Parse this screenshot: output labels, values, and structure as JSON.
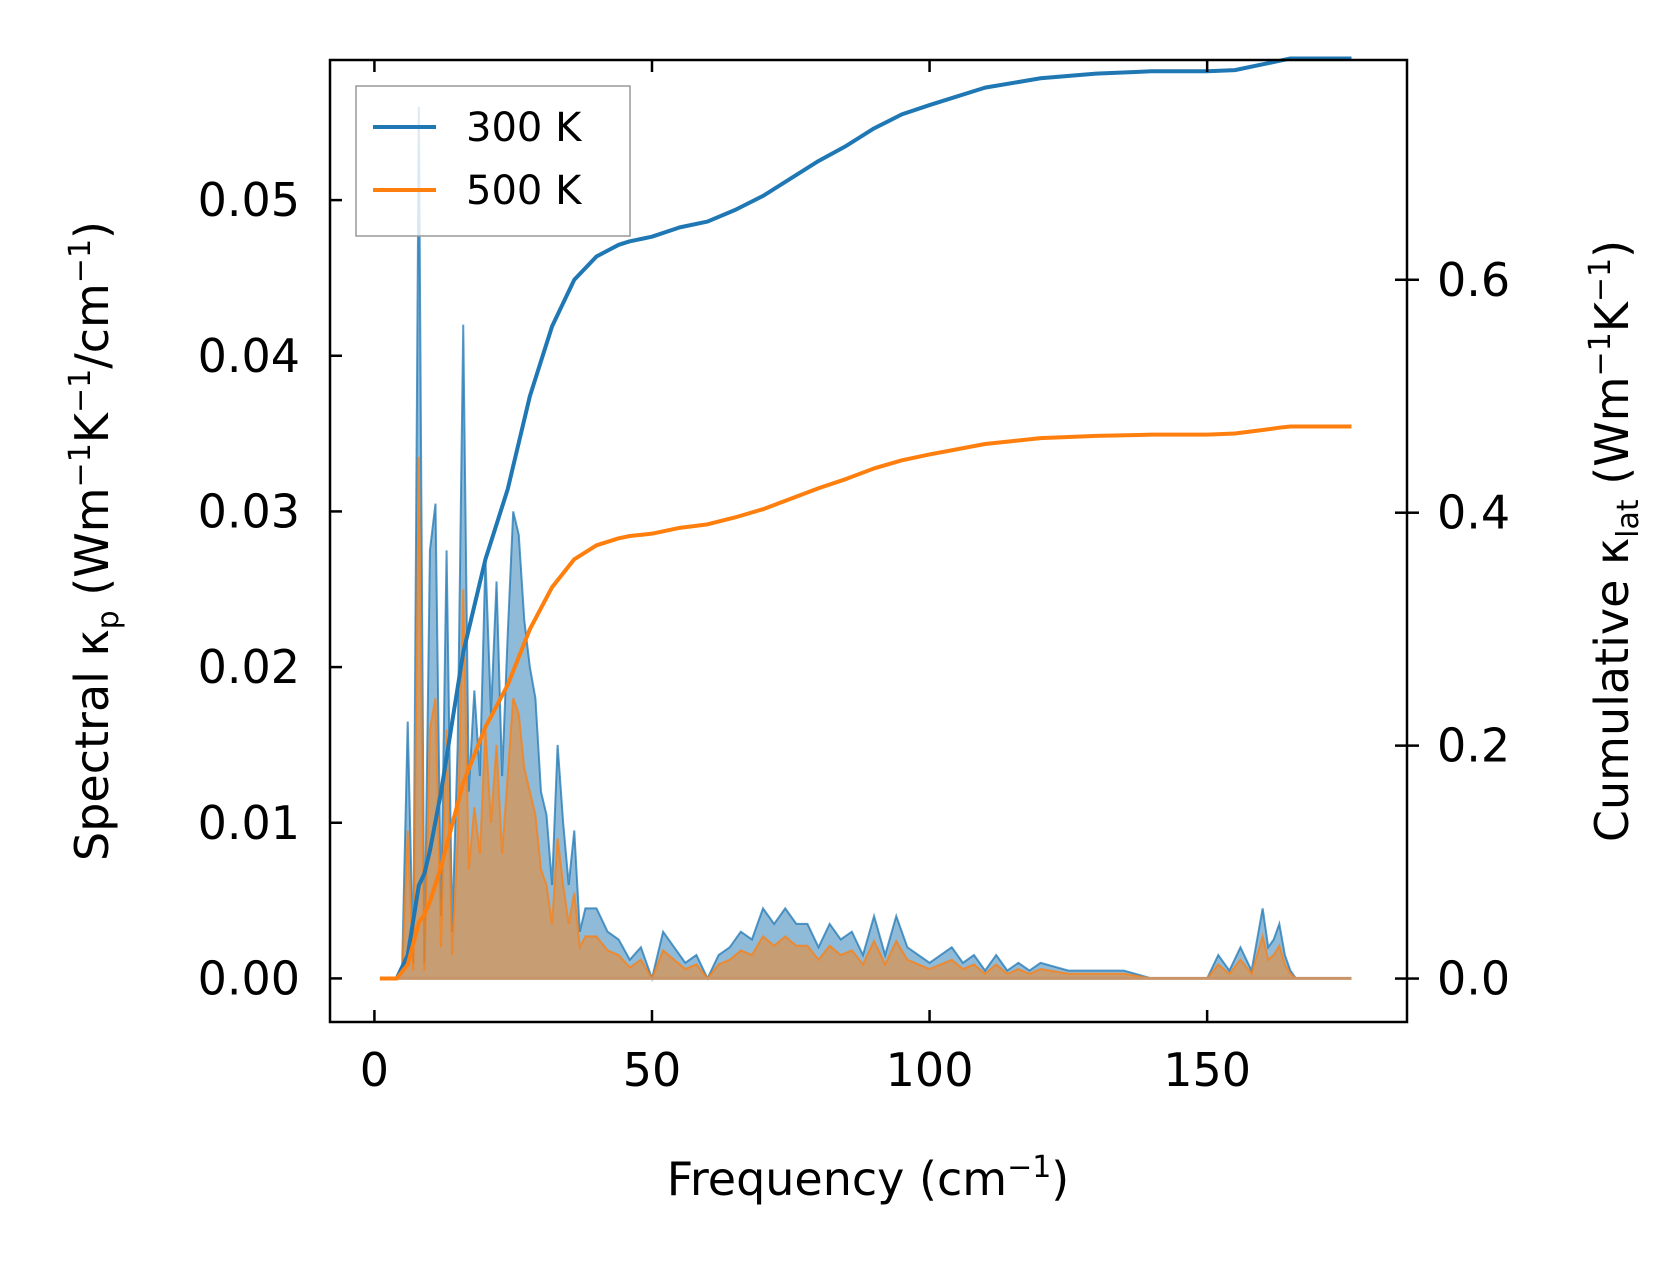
{
  "chart_data": {
    "type": "line",
    "title": "",
    "xlabel": "Frequency (cm⁻¹)",
    "ylabel_left": "Spectral κp (Wm⁻¹K⁻¹/cm⁻¹)",
    "ylabel_right": "Cumulative κlat (Wm⁻¹K⁻¹)",
    "x_ticks": [
      "0",
      "50",
      "100",
      "150"
    ],
    "y_left_ticks": [
      "0.00",
      "0.01",
      "0.02",
      "0.03",
      "0.04",
      "0.05"
    ],
    "y_right_ticks": [
      "0.0",
      "0.2",
      "0.4",
      "0.6"
    ],
    "xlim": [
      -8,
      186
    ],
    "ylim_left": [
      -0.0028,
      0.059
    ],
    "ylim_right": [
      -0.0373,
      0.7887
    ],
    "legend": {
      "placement": "top-left",
      "entries": [
        "300 K",
        "500 K"
      ]
    },
    "grid": false,
    "series": [
      {
        "name": "300 K",
        "color": "#1f77b4",
        "kind": "spectral-fill",
        "axis": "left",
        "x": [
          1,
          3,
          4,
          5,
          6,
          7,
          8,
          9,
          10,
          11,
          12,
          13,
          14,
          15,
          16,
          17,
          18,
          19,
          20,
          21,
          22,
          23,
          24,
          25,
          26,
          27,
          28,
          29,
          30,
          31,
          32,
          33,
          34,
          35,
          36,
          37,
          38,
          40,
          42,
          44,
          46,
          48,
          50,
          52,
          54,
          56,
          58,
          60,
          62,
          64,
          66,
          68,
          70,
          72,
          74,
          76,
          78,
          80,
          82,
          84,
          86,
          88,
          90,
          92,
          94,
          96,
          98,
          100,
          102,
          104,
          106,
          108,
          110,
          112,
          114,
          116,
          118,
          120,
          125,
          130,
          135,
          140,
          145,
          150,
          152,
          154,
          156,
          158,
          160,
          161,
          162,
          163,
          164,
          165,
          166,
          170,
          176
        ],
        "y": [
          0,
          0,
          0,
          0.0008,
          0.0165,
          0.001,
          0.056,
          0.001,
          0.0275,
          0.0305,
          0.004,
          0.0275,
          0.003,
          0.015,
          0.042,
          0.012,
          0.0185,
          0.013,
          0.027,
          0.017,
          0.0255,
          0.013,
          0.022,
          0.03,
          0.0285,
          0.023,
          0.02,
          0.018,
          0.012,
          0.0105,
          0.006,
          0.015,
          0.01,
          0.006,
          0.0095,
          0.003,
          0.0045,
          0.0045,
          0.003,
          0.0025,
          0.0012,
          0.002,
          0,
          0.003,
          0.002,
          0.001,
          0.0015,
          0.0,
          0.0015,
          0.002,
          0.003,
          0.0025,
          0.0045,
          0.0035,
          0.0045,
          0.0035,
          0.0035,
          0.002,
          0.0035,
          0.0025,
          0.003,
          0.0015,
          0.004,
          0.0015,
          0.004,
          0.002,
          0.0015,
          0.001,
          0.0015,
          0.002,
          0.001,
          0.0015,
          0.0005,
          0.0015,
          0.0005,
          0.001,
          0.0005,
          0.001,
          0.0005,
          0.0005,
          0.0005,
          0,
          0,
          0,
          0.0015,
          0.0005,
          0.002,
          0.0005,
          0.0045,
          0.002,
          0.0025,
          0.0035,
          0.0015,
          0.0005,
          0,
          0,
          0
        ]
      },
      {
        "name": "500 K",
        "color": "#ff7f0e",
        "kind": "spectral-fill",
        "axis": "left",
        "x": [
          1,
          3,
          4,
          5,
          6,
          7,
          8,
          9,
          10,
          11,
          12,
          13,
          14,
          15,
          16,
          17,
          18,
          19,
          20,
          21,
          22,
          23,
          24,
          25,
          26,
          27,
          28,
          29,
          30,
          31,
          32,
          33,
          34,
          35,
          36,
          37,
          38,
          40,
          42,
          44,
          46,
          48,
          50,
          52,
          54,
          56,
          58,
          60,
          62,
          64,
          66,
          68,
          70,
          72,
          74,
          76,
          78,
          80,
          82,
          84,
          86,
          88,
          90,
          92,
          94,
          96,
          98,
          100,
          102,
          104,
          106,
          108,
          110,
          112,
          114,
          116,
          118,
          120,
          125,
          130,
          135,
          140,
          145,
          150,
          152,
          154,
          156,
          158,
          160,
          161,
          162,
          163,
          164,
          165,
          166,
          170,
          176
        ],
        "y": [
          0,
          0,
          0,
          0.0005,
          0.0095,
          0.0005,
          0.0335,
          0.0005,
          0.016,
          0.018,
          0.002,
          0.016,
          0.0015,
          0.009,
          0.025,
          0.007,
          0.011,
          0.008,
          0.016,
          0.01,
          0.015,
          0.008,
          0.013,
          0.018,
          0.017,
          0.0135,
          0.012,
          0.0105,
          0.007,
          0.006,
          0.0035,
          0.009,
          0.006,
          0.0035,
          0.0055,
          0.002,
          0.0027,
          0.0027,
          0.0018,
          0.0015,
          0.0007,
          0.0012,
          0,
          0.0018,
          0.0012,
          0.0006,
          0.0009,
          0.0,
          0.0009,
          0.0012,
          0.0018,
          0.0015,
          0.0027,
          0.0021,
          0.0027,
          0.0021,
          0.0021,
          0.0012,
          0.0021,
          0.0015,
          0.0018,
          0.0009,
          0.0024,
          0.0009,
          0.0024,
          0.0012,
          0.0009,
          0.0006,
          0.0009,
          0.0012,
          0.0006,
          0.0009,
          0.0003,
          0.0009,
          0.0003,
          0.0006,
          0.0003,
          0.0006,
          0.0003,
          0.0003,
          0.0003,
          0,
          0,
          0,
          0.0009,
          0.0003,
          0.0012,
          0.0003,
          0.0027,
          0.0012,
          0.0015,
          0.0021,
          0.0009,
          0.0003,
          0,
          0,
          0
        ]
      },
      {
        "name": "300 K cumulative",
        "color": "#1f77b4",
        "kind": "cumulative-line",
        "axis": "right",
        "x": [
          1,
          4,
          5,
          6,
          7,
          8,
          9,
          10,
          12,
          14,
          16,
          18,
          20,
          22,
          24,
          26,
          28,
          30,
          32,
          34,
          36,
          38,
          40,
          42,
          44,
          46,
          48,
          50,
          55,
          60,
          65,
          70,
          75,
          80,
          85,
          90,
          95,
          100,
          110,
          120,
          130,
          140,
          150,
          155,
          160,
          163,
          165,
          176
        ],
        "y": [
          0,
          0,
          0.01,
          0.02,
          0.05,
          0.08,
          0.09,
          0.11,
          0.16,
          0.22,
          0.28,
          0.32,
          0.36,
          0.39,
          0.42,
          0.46,
          0.5,
          0.53,
          0.56,
          0.58,
          0.6,
          0.61,
          0.62,
          0.625,
          0.63,
          0.633,
          0.635,
          0.637,
          0.645,
          0.65,
          0.66,
          0.672,
          0.687,
          0.702,
          0.715,
          0.73,
          0.742,
          0.75,
          0.765,
          0.773,
          0.777,
          0.779,
          0.779,
          0.78,
          0.785,
          0.788,
          0.79,
          0.79
        ]
      },
      {
        "name": "500 K cumulative",
        "color": "#ff7f0e",
        "kind": "cumulative-line",
        "axis": "right",
        "x": [
          1,
          4,
          5,
          6,
          7,
          8,
          9,
          10,
          12,
          14,
          16,
          18,
          20,
          22,
          24,
          26,
          28,
          30,
          32,
          34,
          36,
          38,
          40,
          42,
          44,
          46,
          48,
          50,
          55,
          60,
          65,
          70,
          75,
          80,
          85,
          90,
          95,
          100,
          110,
          120,
          130,
          140,
          150,
          155,
          160,
          163,
          165,
          176
        ],
        "y": [
          0,
          0,
          0.006,
          0.012,
          0.03,
          0.048,
          0.055,
          0.066,
          0.096,
          0.132,
          0.168,
          0.192,
          0.216,
          0.234,
          0.252,
          0.276,
          0.3,
          0.318,
          0.336,
          0.348,
          0.36,
          0.366,
          0.372,
          0.375,
          0.378,
          0.38,
          0.381,
          0.382,
          0.387,
          0.39,
          0.396,
          0.403,
          0.412,
          0.421,
          0.429,
          0.438,
          0.445,
          0.45,
          0.459,
          0.464,
          0.466,
          0.467,
          0.467,
          0.468,
          0.471,
          0.473,
          0.474,
          0.474
        ]
      }
    ]
  }
}
